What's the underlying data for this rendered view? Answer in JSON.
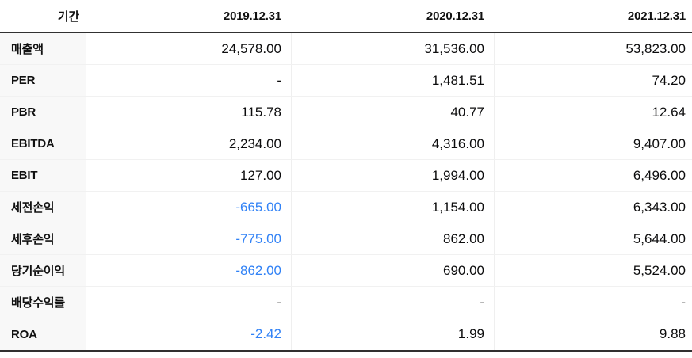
{
  "accent": {
    "negative_blue": "#3182f6"
  },
  "table": {
    "header": {
      "period_label": "기간",
      "columns": [
        "2019.12.31",
        "2020.12.31",
        "2021.12.31"
      ]
    },
    "rows": [
      {
        "label": "매출액",
        "values": [
          "24,578.00",
          "31,536.00",
          "53,823.00"
        ]
      },
      {
        "label": "PER",
        "values": [
          "-",
          "1,481.51",
          "74.20"
        ]
      },
      {
        "label": "PBR",
        "values": [
          "115.78",
          "40.77",
          "12.64"
        ]
      },
      {
        "label": "EBITDA",
        "values": [
          "2,234.00",
          "4,316.00",
          "9,407.00"
        ]
      },
      {
        "label": "EBIT",
        "values": [
          "127.00",
          "1,994.00",
          "6,496.00"
        ]
      },
      {
        "label": "세전손익",
        "values": [
          "-665.00",
          "1,154.00",
          "6,343.00"
        ]
      },
      {
        "label": "세후손익",
        "values": [
          "-775.00",
          "862.00",
          "5,644.00"
        ]
      },
      {
        "label": "당기순이익",
        "values": [
          "-862.00",
          "690.00",
          "5,524.00"
        ]
      },
      {
        "label": "배당수익률",
        "values": [
          "-",
          "-",
          "-"
        ]
      },
      {
        "label": "ROA",
        "values": [
          "-2.42",
          "1.99",
          "9.88"
        ]
      }
    ]
  }
}
